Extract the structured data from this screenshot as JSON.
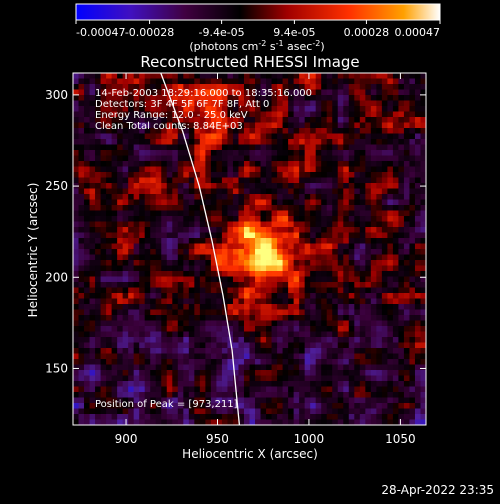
{
  "colorbar": {
    "ticks": [
      -0.00047,
      -0.00028,
      -9.4e-05,
      9.4e-05,
      0.00028,
      0.00047
    ],
    "tick_labels": [
      "-0.00047",
      "-0.00028",
      "-9.4e-05",
      "9.4e-05",
      "0.00028",
      "0.00047"
    ],
    "label_main": "(photons cm",
    "label_exp1": "-2",
    "label_mid": " s",
    "label_exp2": "-1",
    "label_end": " asec",
    "label_exp3": "-2",
    "label_close": ")"
  },
  "chart_data": {
    "type": "heatmap",
    "title": "Reconstructed RHESSI Image",
    "xlabel": "Heliocentric X (arcsec)",
    "ylabel": "Heliocentric Y (arcsec)",
    "xlim": [
      871,
      1064
    ],
    "ylim": [
      119,
      312
    ],
    "xticks": [
      900,
      950,
      1000,
      1050
    ],
    "yticks": [
      150,
      200,
      250,
      300
    ],
    "value_range": [
      -0.00047,
      0.00047
    ],
    "peak": [
      973,
      211
    ],
    "limb_curve": [
      [
        919,
        312
      ],
      [
        931,
        280
      ],
      [
        940,
        250
      ],
      [
        947,
        220
      ],
      [
        953,
        190
      ],
      [
        958,
        160
      ],
      [
        962,
        119
      ]
    ],
    "colormap": [
      "#0000ff",
      "#5020a0",
      "#3a003a",
      "#000000",
      "#a00000",
      "#ff3000",
      "#ff9000",
      "#ffff80"
    ]
  },
  "annotations": [
    "14-Feb-2003 18:29:16.000 to 18:35:16.000",
    "Detectors: 3F 4F 5F 6F 7F 8F, Att 0",
    "Energy Range: 12.0 - 25.0 keV",
    "Clean      Total counts: 8.84E+03"
  ],
  "peak_label": "Position of Peak = [973,211]",
  "timestamp": "28-Apr-2022 23:35"
}
